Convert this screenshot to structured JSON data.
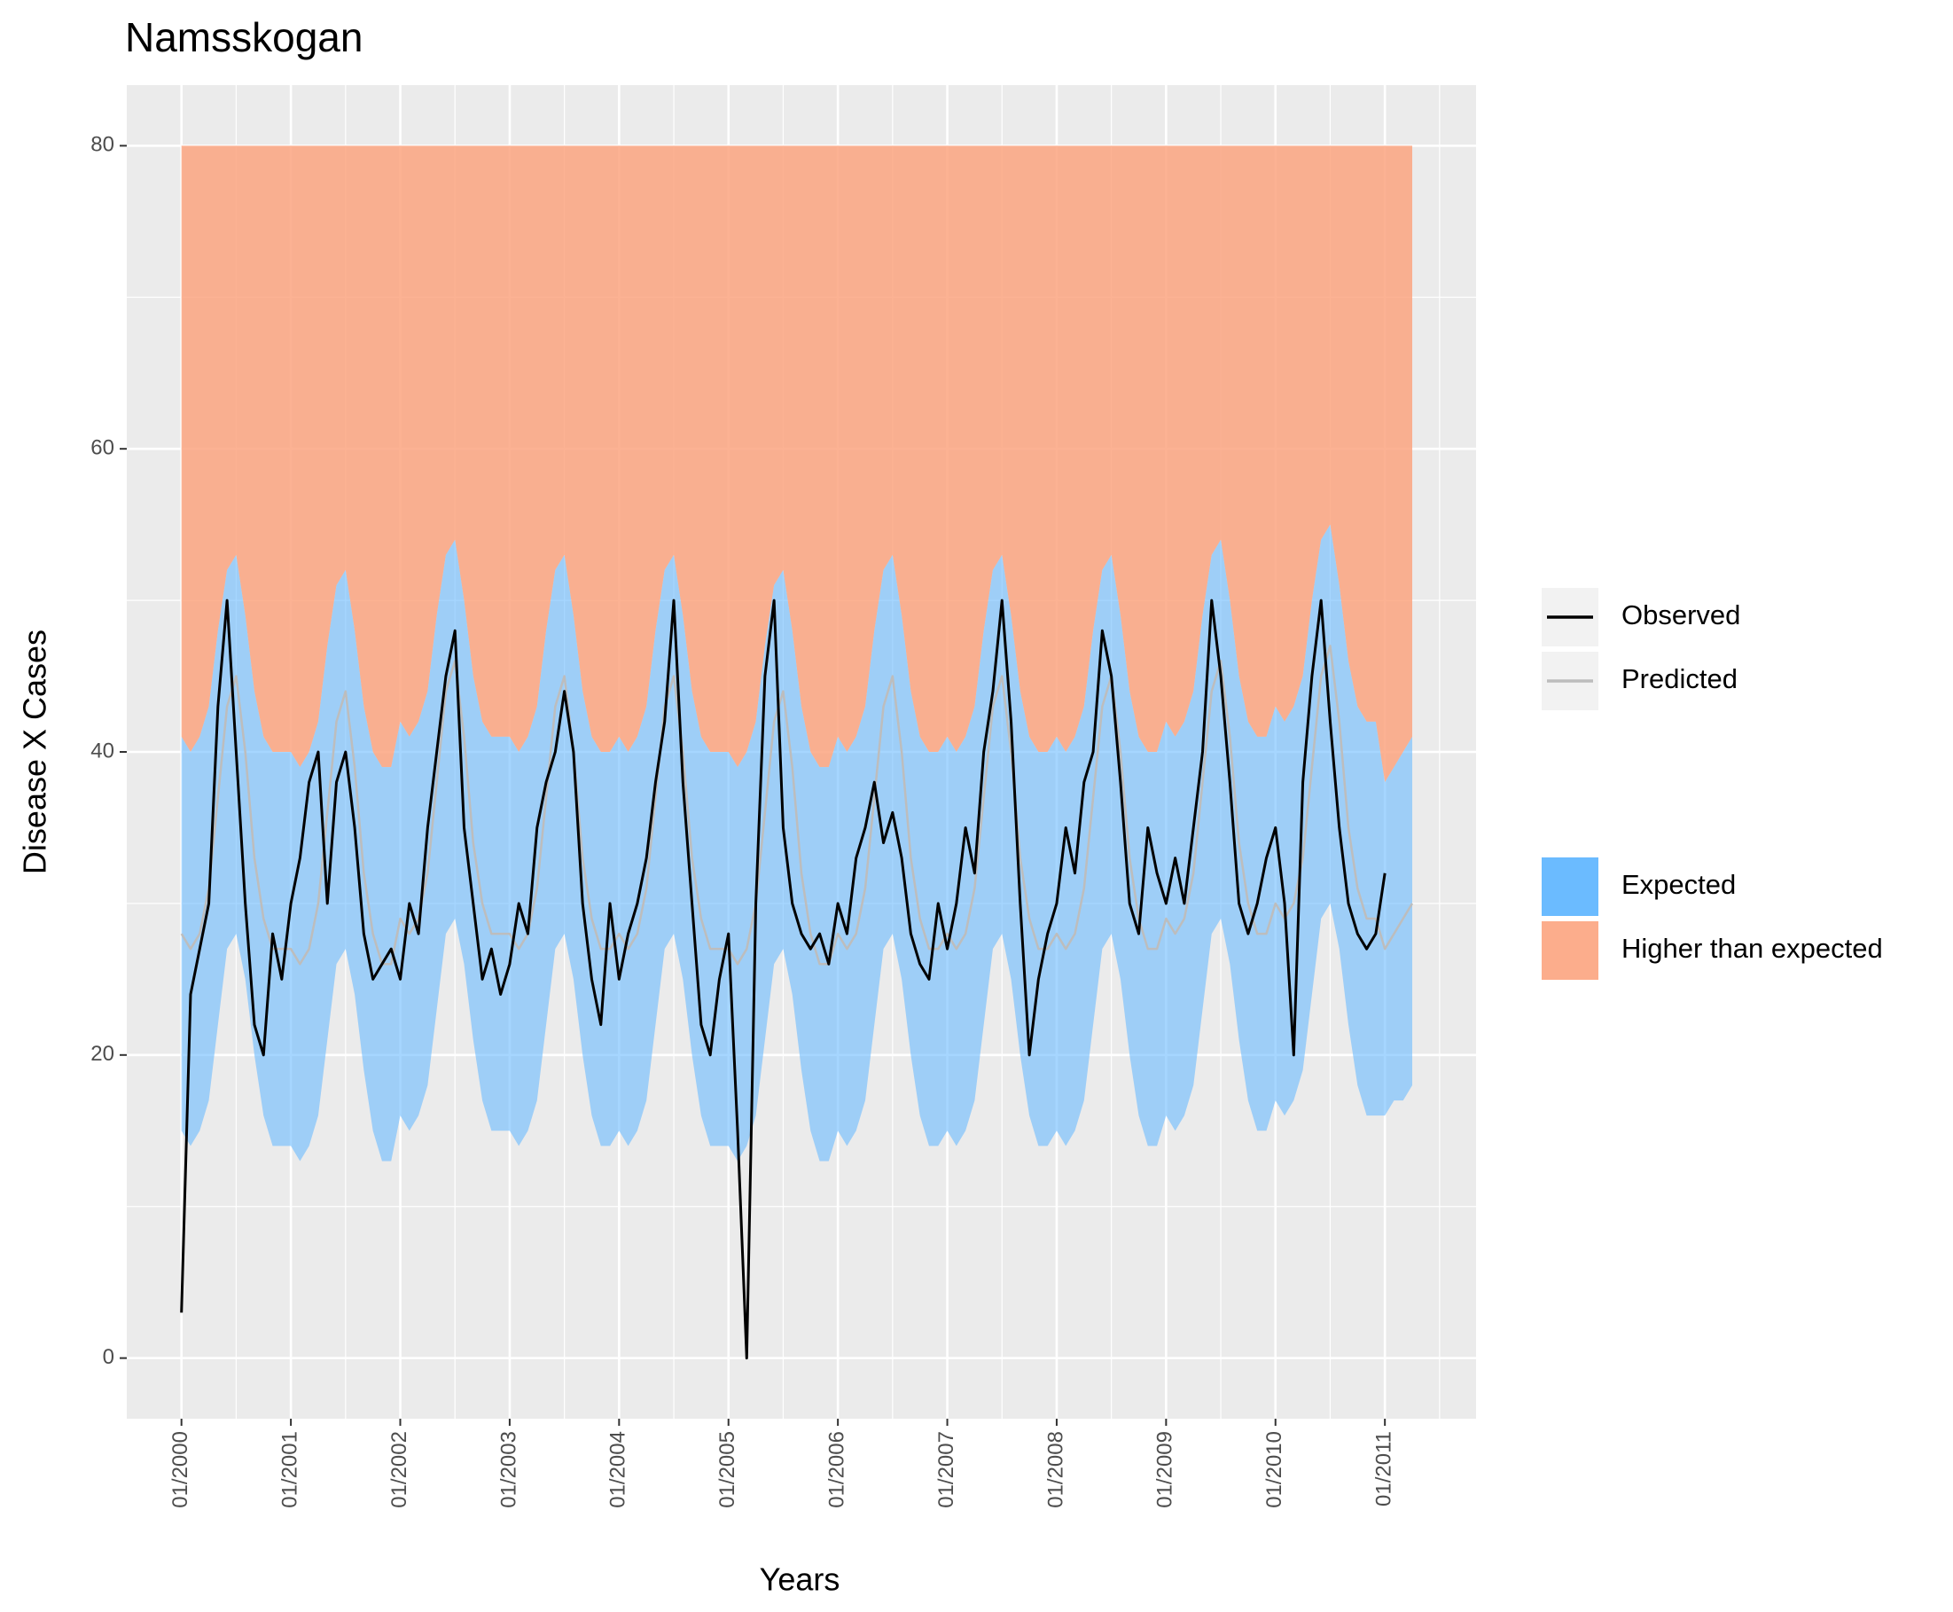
{
  "chart_data": {
    "type": "ribbon-line",
    "title": "Namsskogan",
    "x_label": "Years",
    "y_label": "Disease X Cases",
    "x": [
      "2000-01",
      "2000-02",
      "2000-03",
      "2000-04",
      "2000-05",
      "2000-06",
      "2000-07",
      "2000-08",
      "2000-09",
      "2000-10",
      "2000-11",
      "2000-12",
      "2001-01",
      "2001-02",
      "2001-03",
      "2001-04",
      "2001-05",
      "2001-06",
      "2001-07",
      "2001-08",
      "2001-09",
      "2001-10",
      "2001-11",
      "2001-12",
      "2002-01",
      "2002-02",
      "2002-03",
      "2002-04",
      "2002-05",
      "2002-06",
      "2002-07",
      "2002-08",
      "2002-09",
      "2002-10",
      "2002-11",
      "2002-12",
      "2003-01",
      "2003-02",
      "2003-03",
      "2003-04",
      "2003-05",
      "2003-06",
      "2003-07",
      "2003-08",
      "2003-09",
      "2003-10",
      "2003-11",
      "2003-12",
      "2004-01",
      "2004-02",
      "2004-03",
      "2004-04",
      "2004-05",
      "2004-06",
      "2004-07",
      "2004-08",
      "2004-09",
      "2004-10",
      "2004-11",
      "2004-12",
      "2005-01",
      "2005-02",
      "2005-03",
      "2005-04",
      "2005-05",
      "2005-06",
      "2005-07",
      "2005-08",
      "2005-09",
      "2005-10",
      "2005-11",
      "2005-12",
      "2006-01",
      "2006-02",
      "2006-03",
      "2006-04",
      "2006-05",
      "2006-06",
      "2006-07",
      "2006-08",
      "2006-09",
      "2006-10",
      "2006-11",
      "2006-12",
      "2007-01",
      "2007-02",
      "2007-03",
      "2007-04",
      "2007-05",
      "2007-06",
      "2007-07",
      "2007-08",
      "2007-09",
      "2007-10",
      "2007-11",
      "2007-12",
      "2008-01",
      "2008-02",
      "2008-03",
      "2008-04",
      "2008-05",
      "2008-06",
      "2008-07",
      "2008-08",
      "2008-09",
      "2008-10",
      "2008-11",
      "2008-12",
      "2009-01",
      "2009-02",
      "2009-03",
      "2009-04",
      "2009-05",
      "2009-06",
      "2009-07",
      "2009-08",
      "2009-09",
      "2009-10",
      "2009-11",
      "2009-12",
      "2010-01",
      "2010-02",
      "2010-03",
      "2010-04",
      "2010-05",
      "2010-06",
      "2010-07",
      "2010-08",
      "2010-09",
      "2010-10",
      "2010-11",
      "2010-12",
      "2011-01",
      "2011-02",
      "2011-03",
      "2011-04"
    ],
    "series": [
      {
        "name": "Observed",
        "color": "#000000",
        "values": [
          3,
          24,
          27,
          30,
          43,
          50,
          40,
          30,
          22,
          20,
          28,
          25,
          30,
          33,
          38,
          40,
          30,
          38,
          40,
          35,
          28,
          25,
          26,
          27,
          25,
          30,
          28,
          35,
          40,
          45,
          48,
          35,
          30,
          25,
          27,
          24,
          26,
          30,
          28,
          35,
          38,
          40,
          44,
          40,
          30,
          25,
          22,
          30,
          25,
          28,
          30,
          33,
          38,
          42,
          50,
          38,
          30,
          22,
          20,
          25,
          28,
          15,
          0,
          30,
          45,
          50,
          35,
          30,
          28,
          27,
          28,
          26,
          30,
          28,
          33,
          35,
          38,
          34,
          36,
          33,
          28,
          26,
          25,
          30,
          27,
          30,
          35,
          32,
          40,
          44,
          50,
          42,
          30,
          20,
          25,
          28,
          30,
          35,
          32,
          38,
          40,
          48,
          45,
          38,
          30,
          28,
          35,
          32,
          30,
          33,
          30,
          35,
          40,
          50,
          45,
          38,
          30,
          28,
          30,
          33,
          35,
          30,
          20,
          38,
          45,
          50,
          42,
          35,
          30,
          28,
          27,
          28,
          32,
          null,
          null,
          null
        ]
      },
      {
        "name": "Predicted",
        "color": "#bdbdbd",
        "values": [
          28,
          27,
          28,
          31,
          37,
          43,
          45,
          40,
          33,
          29,
          27,
          27,
          27,
          26,
          27,
          30,
          36,
          42,
          44,
          39,
          32,
          28,
          26,
          26,
          29,
          28,
          29,
          32,
          38,
          44,
          46,
          41,
          34,
          30,
          28,
          28,
          28,
          27,
          28,
          31,
          37,
          43,
          45,
          40,
          33,
          29,
          27,
          27,
          28,
          27,
          28,
          31,
          37,
          43,
          45,
          40,
          33,
          29,
          27,
          27,
          27,
          26,
          27,
          30,
          36,
          42,
          44,
          39,
          32,
          28,
          26,
          26,
          28,
          27,
          28,
          31,
          37,
          43,
          45,
          40,
          33,
          29,
          27,
          27,
          28,
          27,
          28,
          31,
          37,
          43,
          45,
          40,
          33,
          29,
          27,
          27,
          28,
          27,
          28,
          31,
          37,
          43,
          45,
          40,
          33,
          29,
          27,
          27,
          29,
          28,
          29,
          32,
          38,
          44,
          46,
          41,
          34,
          30,
          28,
          28,
          30,
          29,
          30,
          33,
          39,
          45,
          47,
          42,
          35,
          31,
          29,
          29,
          27,
          28,
          29,
          30
        ]
      },
      {
        "name": "Expected",
        "color": "#6bbbff",
        "lower": [
          15,
          14,
          15,
          17,
          22,
          27,
          28,
          25,
          20,
          16,
          14,
          14,
          14,
          13,
          14,
          16,
          21,
          26,
          27,
          24,
          19,
          15,
          13,
          13,
          16,
          15,
          16,
          18,
          23,
          28,
          29,
          26,
          21,
          17,
          15,
          15,
          15,
          14,
          15,
          17,
          22,
          27,
          28,
          25,
          20,
          16,
          14,
          14,
          15,
          14,
          15,
          17,
          22,
          27,
          28,
          25,
          20,
          16,
          14,
          14,
          14,
          13,
          14,
          16,
          21,
          26,
          27,
          24,
          19,
          15,
          13,
          13,
          15,
          14,
          15,
          17,
          22,
          27,
          28,
          25,
          20,
          16,
          14,
          14,
          15,
          14,
          15,
          17,
          22,
          27,
          28,
          25,
          20,
          16,
          14,
          14,
          15,
          14,
          15,
          17,
          22,
          27,
          28,
          25,
          20,
          16,
          14,
          14,
          16,
          15,
          16,
          18,
          23,
          28,
          29,
          26,
          21,
          17,
          15,
          15,
          17,
          16,
          17,
          19,
          24,
          29,
          30,
          27,
          22,
          18,
          16,
          16,
          16,
          17,
          17,
          18
        ],
        "upper": [
          41,
          40,
          41,
          43,
          48,
          52,
          53,
          49,
          44,
          41,
          40,
          40,
          40,
          39,
          40,
          42,
          47,
          51,
          52,
          48,
          43,
          40,
          39,
          39,
          42,
          41,
          42,
          44,
          49,
          53,
          54,
          50,
          45,
          42,
          41,
          41,
          41,
          40,
          41,
          43,
          48,
          52,
          53,
          49,
          44,
          41,
          40,
          40,
          41,
          40,
          41,
          43,
          48,
          52,
          53,
          49,
          44,
          41,
          40,
          40,
          40,
          39,
          40,
          42,
          47,
          51,
          52,
          48,
          43,
          40,
          39,
          39,
          41,
          40,
          41,
          43,
          48,
          52,
          53,
          49,
          44,
          41,
          40,
          40,
          41,
          40,
          41,
          43,
          48,
          52,
          53,
          49,
          44,
          41,
          40,
          40,
          41,
          40,
          41,
          43,
          48,
          52,
          53,
          49,
          44,
          41,
          40,
          40,
          42,
          41,
          42,
          44,
          49,
          53,
          54,
          50,
          45,
          42,
          41,
          41,
          43,
          42,
          43,
          45,
          50,
          54,
          55,
          51,
          46,
          43,
          42,
          42,
          38,
          39,
          40,
          41
        ]
      },
      {
        "name": "Higher than expected",
        "color": "#fca480",
        "top": 80
      }
    ],
    "xlim": [
      "1999-07",
      "2011-11"
    ],
    "xticks": [
      {
        "value": "2000-01",
        "label": "01/2000"
      },
      {
        "value": "2001-01",
        "label": "01/2001"
      },
      {
        "value": "2002-01",
        "label": "01/2002"
      },
      {
        "value": "2003-01",
        "label": "01/2003"
      },
      {
        "value": "2004-01",
        "label": "01/2004"
      },
      {
        "value": "2005-01",
        "label": "01/2005"
      },
      {
        "value": "2006-01",
        "label": "01/2006"
      },
      {
        "value": "2007-01",
        "label": "01/2007"
      },
      {
        "value": "2008-01",
        "label": "01/2008"
      },
      {
        "value": "2009-01",
        "label": "01/2009"
      },
      {
        "value": "2010-01",
        "label": "01/2010"
      },
      {
        "value": "2011-01",
        "label": "01/2011"
      }
    ],
    "ylim": [
      -4,
      84
    ],
    "yticks": [
      0,
      20,
      40,
      60,
      80
    ],
    "grid": true
  }
}
